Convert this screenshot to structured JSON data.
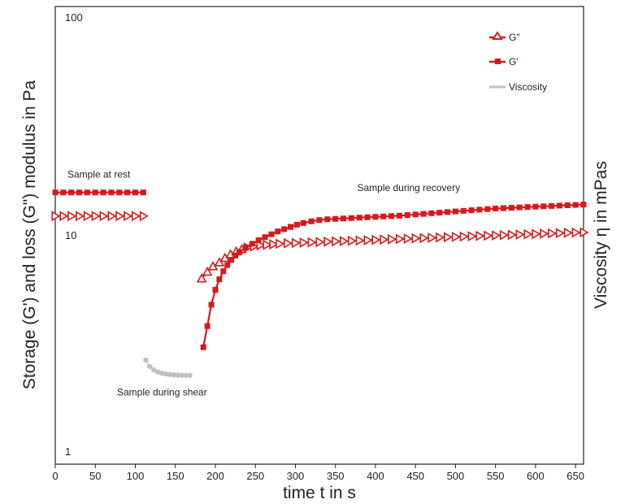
{
  "chart_data": {
    "type": "line",
    "xlabel": "time t in s",
    "ylabel": "Storage (G') and loss (G\") modulus in Pa",
    "y2label": "Viscosity η in mPas",
    "xlim": [
      0,
      660
    ],
    "ylim": [
      1,
      100
    ],
    "y_scale": "log",
    "x_ticks": [
      "0",
      "50",
      "100",
      "150",
      "200",
      "250",
      "300",
      "350",
      "400",
      "450",
      "500",
      "550",
      "600",
      "650"
    ],
    "x_tick_values": [
      0,
      50,
      100,
      150,
      200,
      250,
      300,
      350,
      400,
      450,
      500,
      550,
      600,
      650
    ],
    "y_ticks": [
      "100",
      "10",
      "1"
    ],
    "y_tick_values": [
      100,
      10,
      1
    ],
    "grid": false,
    "legend_position": "top-right",
    "colors": {
      "g_double_prime": "#d7191c",
      "g_prime": "#d7191c",
      "viscosity": "#c0c0c0",
      "axis": "#222222"
    },
    "series": [
      {
        "name": "G\"",
        "marker": "open-triangle",
        "segments": [
          {
            "x": [
              0,
              10,
              20,
              30,
              40,
              50,
              60,
              70,
              80,
              90,
              100,
              110
            ],
            "y": [
              12,
              12,
              12,
              12,
              12,
              12,
              12,
              12,
              12,
              12,
              12,
              12
            ]
          },
          {
            "x": [
              183,
              190,
              197,
              205,
              212,
              219,
              226,
              233,
              240,
              248,
              256,
              264,
              272,
              280,
              290,
              300,
              310,
              320,
              330,
              340,
              350,
              360,
              370,
              380,
              390,
              400,
              410,
              420,
              430,
              440,
              450,
              460,
              470,
              480,
              490,
              500,
              510,
              520,
              530,
              540,
              550,
              560,
              570,
              580,
              590,
              600,
              610,
              620,
              630,
              640,
              650,
              660
            ],
            "y": [
              6.2,
              6.65,
              7.05,
              7.35,
              7.7,
              8.0,
              8.25,
              8.45,
              8.6,
              8.7,
              8.8,
              8.85,
              8.9,
              8.95,
              9.0,
              9.03,
              9.06,
              9.09,
              9.12,
              9.15,
              9.18,
              9.21,
              9.24,
              9.27,
              9.3,
              9.33,
              9.36,
              9.39,
              9.42,
              9.45,
              9.48,
              9.51,
              9.54,
              9.57,
              9.6,
              9.63,
              9.66,
              9.69,
              9.72,
              9.75,
              9.78,
              9.81,
              9.84,
              9.87,
              9.9,
              9.93,
              9.96,
              9.99,
              10.02,
              10.05,
              10.08,
              10.1
            ]
          }
        ]
      },
      {
        "name": "G'",
        "marker": "filled-square",
        "segments": [
          {
            "x": [
              0,
              10,
              20,
              30,
              40,
              50,
              60,
              70,
              80,
              90,
              100,
              110
            ],
            "y": [
              15.4,
              15.4,
              15.4,
              15.4,
              15.4,
              15.4,
              15.4,
              15.4,
              15.4,
              15.4,
              15.4,
              15.4
            ]
          },
          {
            "x": [
              185,
              190,
              195,
              200,
              205,
              210,
              215,
              220,
              225,
              230,
              238,
              246,
              254,
              262,
              270,
              278,
              286,
              294,
              302,
              310,
              320,
              330,
              340,
              350,
              360,
              370,
              380,
              390,
              400,
              410,
              420,
              430,
              440,
              450,
              460,
              470,
              480,
              490,
              500,
              510,
              520,
              530,
              540,
              550,
              560,
              570,
              580,
              590,
              600,
              610,
              620,
              630,
              640,
              650,
              660
            ],
            "y": [
              3.0,
              3.75,
              4.7,
              5.5,
              6.15,
              6.7,
              7.15,
              7.55,
              7.9,
              8.2,
              8.6,
              8.95,
              9.3,
              9.6,
              9.9,
              10.2,
              10.45,
              10.7,
              10.95,
              11.15,
              11.35,
              11.5,
              11.6,
              11.65,
              11.7,
              11.75,
              11.8,
              11.85,
              11.9,
              11.95,
              12.0,
              12.05,
              12.12,
              12.2,
              12.28,
              12.36,
              12.44,
              12.52,
              12.6,
              12.68,
              12.76,
              12.84,
              12.92,
              13.0,
              13.05,
              13.1,
              13.15,
              13.2,
              13.25,
              13.3,
              13.35,
              13.4,
              13.45,
              13.5,
              13.55
            ]
          }
        ]
      },
      {
        "name": "Viscosity",
        "marker": "filled-circle",
        "segments": [
          {
            "x": [
              113,
              118,
              123,
              128,
              133,
              138,
              143,
              148,
              153,
              158,
              163,
              168
            ],
            "y": [
              2.62,
              2.45,
              2.36,
              2.31,
              2.28,
              2.26,
              2.25,
              2.24,
              2.235,
              2.23,
              2.23,
              2.23
            ]
          }
        ]
      }
    ],
    "annotations": [
      {
        "text": "Sample at rest",
        "x": 3,
        "y": 18.0
      },
      {
        "text": "Sample during recovery",
        "x": 365,
        "y": 15.6
      },
      {
        "text": "Sample during shear",
        "x": 65,
        "y": 1.8
      }
    ]
  }
}
